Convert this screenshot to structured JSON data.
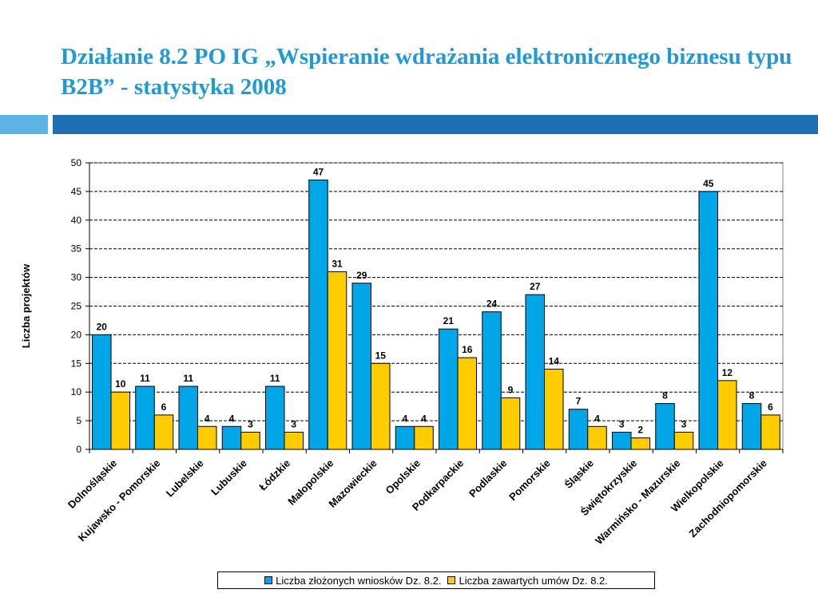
{
  "slide": {
    "title": "Działanie 8.2 PO IG „Wspieranie wdrażania elektronicznego biznesu typu B2B”  - statystyka 2008"
  },
  "chart_data": {
    "type": "bar",
    "title": "",
    "ylabel": "Liczba projektów",
    "xlabel": "",
    "ylim": [
      0,
      50
    ],
    "yticks": [
      0,
      5,
      10,
      15,
      20,
      25,
      30,
      35,
      40,
      45,
      50
    ],
    "grid": "horizontal dashed",
    "legend_position": "bottom",
    "categories": [
      "Dolnośląskie",
      "Kujawsko - Pomorskie",
      "Lubelskie",
      "Lubuskie",
      "Łódzkie",
      "Małopolskie",
      "Mazowieckie",
      "Opolskie",
      "Podkarpackie",
      "Podlaskie",
      "Pomorskie",
      "Śląskie",
      "Świętokrzyskie",
      "Warmińsko - Mazurskie",
      "Wielkopolskie",
      "Zachodniopomorskie"
    ],
    "series": [
      {
        "name": "Liczba złożonych wniosków Dz. 8.2.",
        "color": "#00a6e8",
        "values": [
          20,
          11,
          11,
          4,
          11,
          47,
          29,
          4,
          21,
          24,
          27,
          7,
          3,
          8,
          45,
          8
        ]
      },
      {
        "name": "Liczba zawartych umów Dz. 8.2.",
        "color": "#ffcc00",
        "values": [
          10,
          6,
          4,
          3,
          3,
          31,
          15,
          4,
          16,
          9,
          14,
          4,
          2,
          3,
          12,
          6
        ]
      }
    ]
  }
}
